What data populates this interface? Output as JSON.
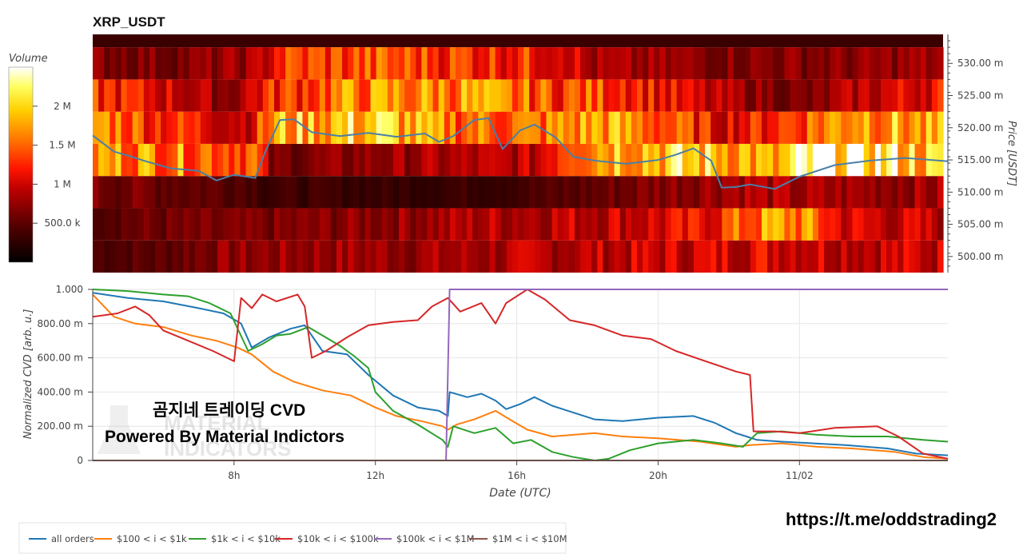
{
  "chart_data": [
    {
      "type": "heatmap",
      "title": "XRP_USDT",
      "colorbar": {
        "label": "Volume",
        "range": [
          0,
          2500000
        ],
        "tick_values": [
          2000000,
          1500000,
          1000000,
          500000
        ],
        "tick_labels": [
          "2 M",
          "1.5 M",
          "1 M",
          "500.0 k"
        ]
      },
      "ylabel": "Price [USDT]",
      "ylim": [
        0.4975,
        0.5345
      ],
      "y_ticks": [
        0.5,
        0.505,
        0.51,
        0.515,
        0.52,
        0.525,
        0.53
      ],
      "y_tick_labels": [
        "500.00 m",
        "505.00 m",
        "510.00 m",
        "515.00 m",
        "520.00 m",
        "525.00 m",
        "530.00 m"
      ],
      "price_bins": [
        0.4975,
        0.5025,
        0.5075,
        0.5125,
        0.5175,
        0.5225,
        0.5275,
        0.5325
      ],
      "band_volume_profile": [
        [
          [
            0,
            450000
          ],
          [
            8,
            500000
          ],
          [
            14,
            700000
          ],
          [
            28,
            800000
          ],
          [
            40,
            800000
          ],
          [
            56,
            900000
          ],
          [
            64,
            950000
          ],
          [
            72,
            1000000
          ],
          [
            80,
            1100000
          ],
          [
            89,
            1000000
          ],
          [
            100,
            950000
          ]
        ],
        [
          [
            0,
            550000
          ],
          [
            18,
            600000
          ],
          [
            30,
            700000
          ],
          [
            48,
            900000
          ],
          [
            56,
            950000
          ],
          [
            70,
            1050000
          ],
          [
            80,
            1700000
          ],
          [
            84,
            1600000
          ],
          [
            88,
            1050000
          ],
          [
            100,
            900000
          ]
        ],
        [
          [
            0,
            650000
          ],
          [
            18,
            500000
          ],
          [
            20,
            350000
          ],
          [
            36,
            300000
          ],
          [
            48,
            350000
          ],
          [
            58,
            500000
          ],
          [
            66,
            700000
          ],
          [
            76,
            900000
          ],
          [
            82,
            800000
          ],
          [
            100,
            800000
          ]
        ],
        [
          [
            0,
            1700000
          ],
          [
            6,
            1700000
          ],
          [
            19,
            1500000
          ],
          [
            21,
            600000
          ],
          [
            38,
            800000
          ],
          [
            52,
            900000
          ],
          [
            56,
            1700000
          ],
          [
            62,
            2000000
          ],
          [
            76,
            1900000
          ],
          [
            80,
            1600000
          ],
          [
            84,
            2200000
          ],
          [
            88,
            2400000
          ],
          [
            100,
            1800000
          ]
        ],
        [
          [
            0,
            1800000
          ],
          [
            6,
            1400000
          ],
          [
            18,
            1000000
          ],
          [
            22,
            1800000
          ],
          [
            34,
            2000000
          ],
          [
            40,
            1600000
          ],
          [
            52,
            1500000
          ],
          [
            60,
            1800000
          ],
          [
            66,
            1500000
          ],
          [
            74,
            1100000
          ],
          [
            78,
            1200000
          ],
          [
            84,
            1500000
          ],
          [
            90,
            1900000
          ],
          [
            100,
            1600000
          ]
        ],
        [
          [
            0,
            1300000
          ],
          [
            10,
            1000000
          ],
          [
            16,
            700000
          ],
          [
            20,
            1200000
          ],
          [
            30,
            1600000
          ],
          [
            44,
            1700000
          ],
          [
            49,
            1500000
          ],
          [
            54,
            1400000
          ],
          [
            62,
            1400000
          ],
          [
            72,
            900000
          ],
          [
            84,
            600000
          ],
          [
            90,
            900000
          ],
          [
            100,
            1200000
          ]
        ],
        [
          [
            0,
            700000
          ],
          [
            10,
            650000
          ],
          [
            19,
            800000
          ],
          [
            22,
            1300000
          ],
          [
            34,
            1400000
          ],
          [
            48,
            1300000
          ],
          [
            56,
            1200000
          ],
          [
            58,
            800000
          ],
          [
            76,
            700000
          ],
          [
            90,
            700000
          ],
          [
            100,
            800000
          ]
        ]
      ],
      "price_line": {
        "x_hours": [
          4,
          4.6,
          5.1,
          5.5,
          6.2,
          7,
          7.5,
          8,
          8.6,
          8.9,
          9.3,
          9.7,
          10.2,
          11,
          11.8,
          12.6,
          13.4,
          13.8,
          14.2,
          14.8,
          15.2,
          15.6,
          16.1,
          16.5,
          17.1,
          17.6,
          18.2,
          19.1,
          20,
          20.5,
          21,
          21.5,
          21.8,
          22.2,
          22.6,
          23.3,
          24,
          25,
          26,
          27,
          28.2
        ],
        "y": [
          0.5188,
          0.5163,
          0.5155,
          0.5148,
          0.5137,
          0.5133,
          0.5118,
          0.5127,
          0.5122,
          0.5165,
          0.5212,
          0.5213,
          0.5193,
          0.5187,
          0.5192,
          0.5186,
          0.5191,
          0.5178,
          0.5187,
          0.5212,
          0.5215,
          0.5167,
          0.5196,
          0.5205,
          0.5185,
          0.5155,
          0.5149,
          0.5144,
          0.515,
          0.5158,
          0.5168,
          0.5149,
          0.5107,
          0.5108,
          0.5112,
          0.5105,
          0.5124,
          0.5142,
          0.5149,
          0.5153,
          0.5148
        ]
      }
    },
    {
      "type": "line",
      "xlabel": "Date (UTC)",
      "ylabel": "Normalized CVD [arb. u.]",
      "xlim": [
        4,
        28.2
      ],
      "x_ticks": [
        8,
        12,
        16,
        20,
        24
      ],
      "x_tick_labels": [
        "8h",
        "12h",
        "16h",
        "20h",
        "11/02"
      ],
      "ylim": [
        0,
        1
      ],
      "y_ticks": [
        0,
        0.2,
        0.4,
        0.6,
        0.8,
        1
      ],
      "y_tick_labels": [
        "0",
        "200.00 m",
        "400.00 m",
        "600.00 m",
        "800.00 m",
        "1.000"
      ],
      "series": [
        {
          "name": "all orders",
          "color": "#1f77b4",
          "x": [
            4,
            5,
            6,
            7,
            7.7,
            8.2,
            8.5,
            9,
            9.6,
            10,
            10.5,
            11.2,
            11.8,
            12.5,
            13.2,
            13.8,
            14.05,
            14.1,
            14.6,
            15,
            15.4,
            15.7,
            16.1,
            16.5,
            17,
            17.6,
            18.2,
            19,
            20,
            21,
            21.6,
            22.2,
            22.5,
            22.8,
            23.5,
            24.4,
            25.3,
            26.5,
            27.3,
            28.2
          ],
          "y": [
            0.98,
            0.95,
            0.93,
            0.89,
            0.86,
            0.8,
            0.66,
            0.72,
            0.77,
            0.79,
            0.64,
            0.62,
            0.5,
            0.38,
            0.31,
            0.29,
            0.26,
            0.4,
            0.37,
            0.39,
            0.35,
            0.3,
            0.33,
            0.37,
            0.32,
            0.28,
            0.24,
            0.23,
            0.25,
            0.26,
            0.22,
            0.16,
            0.14,
            0.12,
            0.11,
            0.1,
            0.09,
            0.07,
            0.04,
            0.03
          ]
        },
        {
          "name": "$100 < i < $1k",
          "color": "#ff7f0e",
          "x": [
            4,
            4.6,
            5.2,
            6,
            6.8,
            7.5,
            8.1,
            8.5,
            9.1,
            9.7,
            10.5,
            11.3,
            12,
            12.6,
            13.3,
            13.9,
            14.05,
            14.3,
            14.8,
            15.4,
            15.8,
            16.3,
            17,
            17.6,
            18.2,
            19,
            20,
            21.2,
            22.2,
            22.6,
            23.5,
            24.5,
            25.5,
            26.7,
            27.5,
            28.2
          ],
          "y": [
            0.97,
            0.84,
            0.8,
            0.78,
            0.73,
            0.7,
            0.66,
            0.62,
            0.52,
            0.46,
            0.41,
            0.38,
            0.31,
            0.26,
            0.23,
            0.2,
            0.18,
            0.21,
            0.24,
            0.29,
            0.24,
            0.18,
            0.14,
            0.15,
            0.16,
            0.14,
            0.13,
            0.11,
            0.08,
            0.09,
            0.1,
            0.08,
            0.07,
            0.05,
            0.02,
            0.01
          ]
        },
        {
          "name": "$1k < i < $10k",
          "color": "#2ca02c",
          "x": [
            4,
            5,
            6,
            6.7,
            7.3,
            7.9,
            8.4,
            8.8,
            9.2,
            9.6,
            10.1,
            11,
            11.4,
            11.8,
            12,
            12.5,
            13.2,
            13.9,
            14.05,
            14.2,
            14.8,
            15.4,
            15.9,
            16.4,
            17,
            17.6,
            18.2,
            18.6,
            19.2,
            20,
            21,
            21.8,
            22.4,
            22.8,
            23.5,
            24.5,
            25.5,
            26.5,
            27.5,
            28.2
          ],
          "y": [
            1.0,
            0.99,
            0.97,
            0.96,
            0.92,
            0.86,
            0.64,
            0.68,
            0.73,
            0.74,
            0.78,
            0.67,
            0.61,
            0.54,
            0.4,
            0.29,
            0.21,
            0.12,
            0.08,
            0.2,
            0.16,
            0.19,
            0.1,
            0.12,
            0.05,
            0.02,
            0.0,
            0.01,
            0.06,
            0.1,
            0.12,
            0.1,
            0.08,
            0.16,
            0.17,
            0.15,
            0.14,
            0.14,
            0.12,
            0.11
          ]
        },
        {
          "name": "$10k < i < $100k",
          "color": "#d62728",
          "x": [
            4,
            4.7,
            5.2,
            5.6,
            6,
            6.7,
            7.4,
            8,
            8.2,
            8.5,
            8.8,
            9.2,
            9.8,
            10,
            10.2,
            10.6,
            11.2,
            11.8,
            12.5,
            13.2,
            13.6,
            14.05,
            14.4,
            15,
            15.4,
            15.7,
            16.3,
            16.8,
            17.5,
            18.2,
            19,
            19.8,
            20.5,
            21.2,
            22.2,
            22.6,
            22.7,
            23.3,
            24,
            25,
            26.2,
            26.8,
            27.5,
            28.2
          ],
          "y": [
            0.84,
            0.86,
            0.9,
            0.85,
            0.76,
            0.7,
            0.64,
            0.58,
            0.95,
            0.89,
            0.97,
            0.93,
            0.97,
            0.9,
            0.6,
            0.64,
            0.72,
            0.79,
            0.81,
            0.82,
            0.9,
            0.95,
            0.87,
            0.92,
            0.8,
            0.92,
            1.0,
            0.94,
            0.82,
            0.79,
            0.73,
            0.71,
            0.64,
            0.59,
            0.52,
            0.5,
            0.17,
            0.17,
            0.16,
            0.19,
            0.2,
            0.14,
            0.04,
            0.01
          ]
        },
        {
          "name": "$100k < i < $1M",
          "color": "#9467bd",
          "x": [
            4,
            14.0,
            14.1,
            28.2
          ],
          "y": [
            0,
            0,
            1.0,
            1.0
          ]
        },
        {
          "name": "$1M < i < $10M",
          "color": "#8c564b",
          "x": [
            4,
            28.2
          ],
          "y": [
            0,
            0
          ]
        }
      ]
    }
  ],
  "watermark": {
    "line1": "곰지네 트레이딩 CVD",
    "line2": "Powered By Material Indictors",
    "logo_line1": "MATERIAL",
    "logo_line2": "INDICATORS",
    "link": "https://t.me/oddstrading2"
  }
}
